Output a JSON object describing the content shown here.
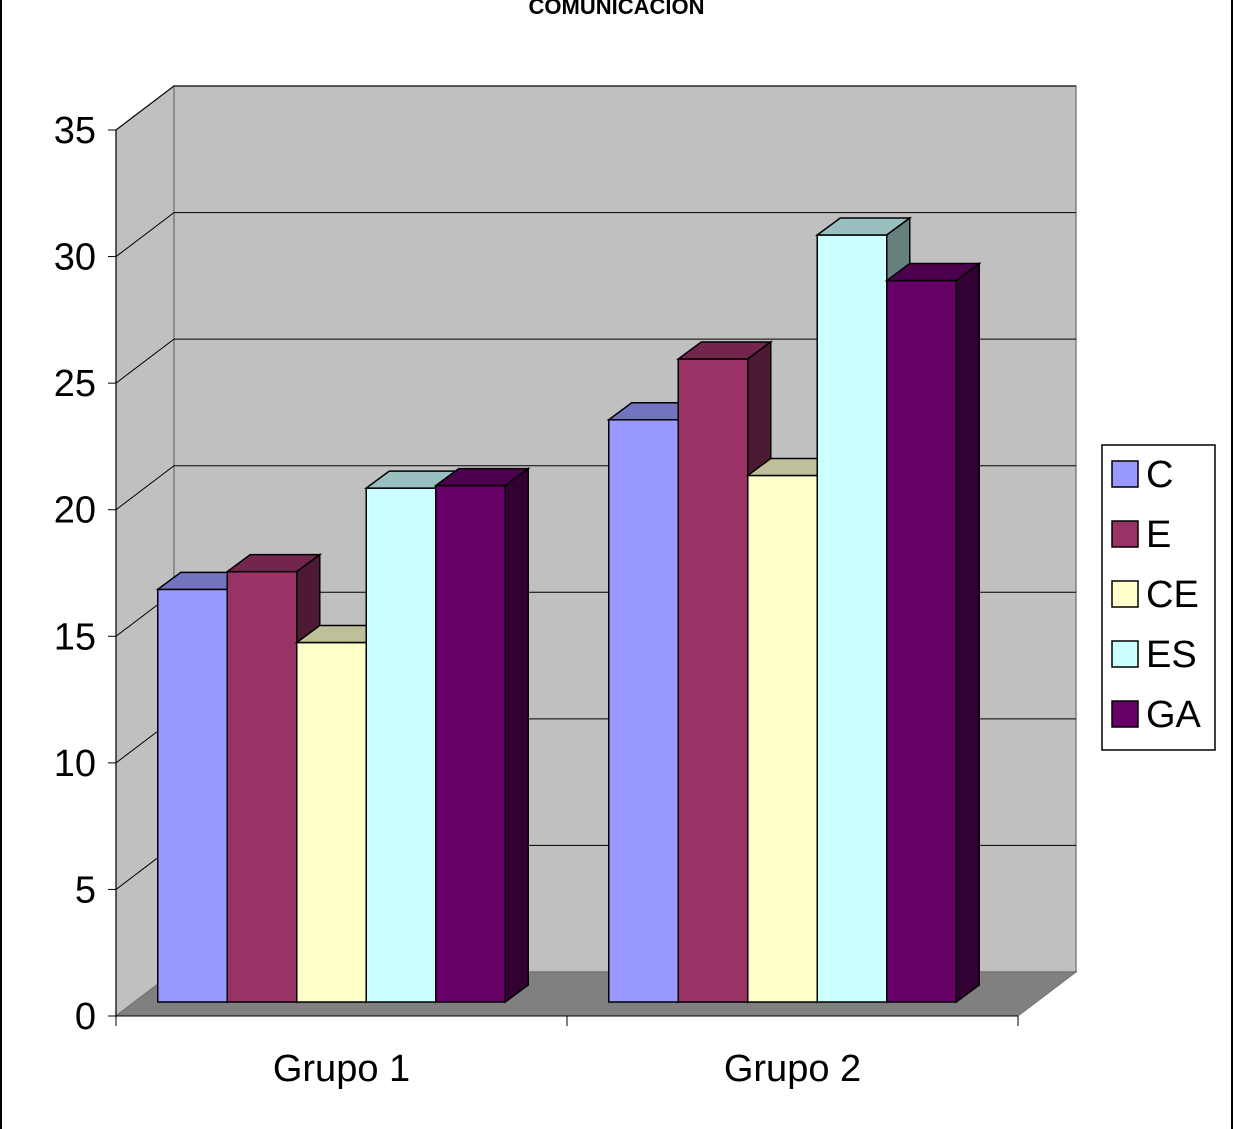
{
  "chart_data": {
    "type": "bar",
    "title": "COMUNICACION",
    "categories": [
      "Grupo 1",
      "Grupo 2"
    ],
    "series": [
      {
        "name": "C",
        "values": [
          16.3,
          23.0
        ],
        "color": "#9999ff"
      },
      {
        "name": "E",
        "values": [
          17.0,
          25.4
        ],
        "color": "#993366"
      },
      {
        "name": "CE",
        "values": [
          14.2,
          20.8
        ],
        "color": "#ffffcc"
      },
      {
        "name": "ES",
        "values": [
          20.3,
          30.3
        ],
        "color": "#ccffff"
      },
      {
        "name": "GA",
        "values": [
          20.4,
          28.5
        ],
        "color": "#660066"
      }
    ],
    "y_ticks": [
      "0",
      "5",
      "10",
      "15",
      "20",
      "25",
      "30",
      "35"
    ],
    "ylim": [
      0,
      35
    ],
    "grid": true,
    "legend": "right",
    "wall_color": "#c0c0c0",
    "floor_color": "#808080"
  }
}
